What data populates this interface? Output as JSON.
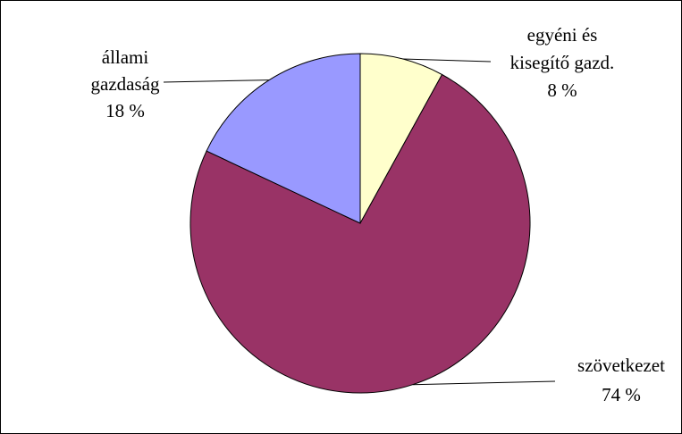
{
  "chart_data": {
    "type": "pie",
    "title": "",
    "slices": [
      {
        "label_lines": [
          "egyéni és",
          "kisegítő gazd."
        ],
        "percent_text": "8 %",
        "value": 8,
        "color": "#FFFFCC"
      },
      {
        "label_lines": [
          "szövetkezet"
        ],
        "percent_text": "74 %",
        "value": 74,
        "color": "#993366"
      },
      {
        "label_lines": [
          "állami",
          "gazdaság"
        ],
        "percent_text": "18 %",
        "value": 18,
        "color": "#9999FF"
      }
    ],
    "legend": "none",
    "grid": false
  }
}
